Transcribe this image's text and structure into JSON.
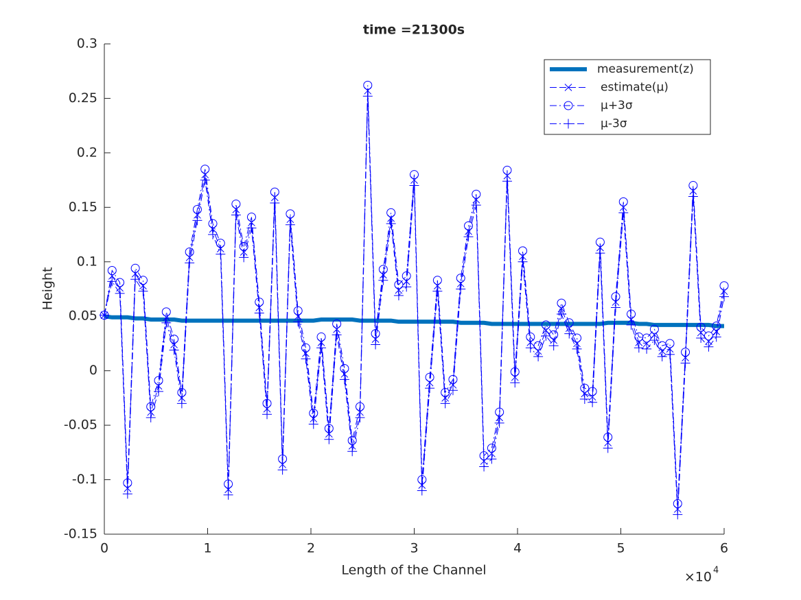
{
  "chart_data": {
    "type": "line",
    "title": "time =21300s",
    "xlabel": "Length of the Channel",
    "ylabel": "Height",
    "x_exponent": {
      "base": "×10",
      "power": "4"
    },
    "xlim": [
      0,
      60000
    ],
    "ylim": [
      -0.15,
      0.3
    ],
    "xticks": [
      {
        "value": 0,
        "label": "0"
      },
      {
        "value": 10000,
        "label": "1"
      },
      {
        "value": 20000,
        "label": "2"
      },
      {
        "value": 30000,
        "label": "3"
      },
      {
        "value": 40000,
        "label": "4"
      },
      {
        "value": 50000,
        "label": "5"
      },
      {
        "value": 60000,
        "label": "6"
      }
    ],
    "yticks": [
      -0.15,
      -0.1,
      -0.05,
      0,
      0.05,
      0.1,
      0.15,
      0.2,
      0.25,
      0.3
    ],
    "legend": "upper right",
    "x": [
      0,
      750,
      1500,
      2250,
      3000,
      3750,
      4500,
      5250,
      6000,
      6750,
      7500,
      8250,
      9000,
      9750,
      10500,
      11250,
      12000,
      12750,
      13500,
      14250,
      15000,
      15750,
      16500,
      17250,
      18000,
      18750,
      19500,
      20250,
      21000,
      21750,
      22500,
      23250,
      24000,
      24750,
      25500,
      26250,
      27000,
      27750,
      28500,
      29250,
      30000,
      30750,
      31500,
      32250,
      33000,
      33750,
      34500,
      35250,
      36000,
      36750,
      37500,
      38250,
      39000,
      39750,
      40500,
      41250,
      42000,
      42750,
      43500,
      44250,
      45000,
      45750,
      46500,
      47250,
      48000,
      48750,
      49500,
      50250,
      51000,
      51750,
      52500,
      53250,
      54000,
      54750,
      55500,
      56250,
      57000,
      57750,
      58500,
      59250,
      60000
    ],
    "series": [
      {
        "name": "measurement(z)",
        "color": "#0072bd",
        "line_width": 6,
        "dash": "none",
        "marker": "none",
        "values": [
          0.05,
          0.049,
          0.049,
          0.049,
          0.048,
          0.048,
          0.047,
          0.047,
          0.047,
          0.047,
          0.046,
          0.046,
          0.046,
          0.046,
          0.046,
          0.046,
          0.046,
          0.046,
          0.046,
          0.046,
          0.046,
          0.046,
          0.046,
          0.046,
          0.046,
          0.046,
          0.046,
          0.046,
          0.047,
          0.047,
          0.047,
          0.047,
          0.047,
          0.046,
          0.046,
          0.046,
          0.046,
          0.046,
          0.045,
          0.045,
          0.045,
          0.045,
          0.045,
          0.045,
          0.045,
          0.045,
          0.044,
          0.044,
          0.044,
          0.044,
          0.043,
          0.043,
          0.043,
          0.043,
          0.043,
          0.043,
          0.043,
          0.043,
          0.043,
          0.043,
          0.043,
          0.043,
          0.043,
          0.043,
          0.043,
          0.044,
          0.044,
          0.044,
          0.044,
          0.043,
          0.043,
          0.042,
          0.042,
          0.042,
          0.042,
          0.042,
          0.042,
          0.042,
          0.042,
          0.041,
          0.041
        ]
      },
      {
        "name": "estimate(μ)",
        "color": "#0000ff",
        "line_width": 1,
        "dash": "10 4",
        "marker": "x",
        "values": [
          0.051,
          0.087,
          0.076,
          -0.108,
          0.089,
          0.078,
          -0.038,
          -0.014,
          0.049,
          0.024,
          -0.025,
          0.104,
          0.143,
          0.18,
          0.13,
          0.112,
          -0.109,
          0.148,
          0.109,
          0.136,
          0.058,
          -0.035,
          0.159,
          -0.086,
          0.139,
          0.05,
          0.016,
          -0.044,
          0.026,
          -0.058,
          0.038,
          -0.003,
          -0.069,
          -0.038,
          0.257,
          0.029,
          0.088,
          0.14,
          0.074,
          0.082,
          0.175,
          -0.105,
          -0.011,
          0.078,
          -0.025,
          -0.013,
          0.08,
          0.128,
          0.157,
          -0.083,
          -0.076,
          -0.043,
          0.179,
          -0.006,
          0.105,
          0.026,
          0.018,
          0.037,
          0.028,
          0.057,
          0.039,
          0.025,
          -0.021,
          -0.024,
          0.113,
          -0.066,
          0.063,
          0.15,
          0.047,
          0.026,
          0.025,
          0.033,
          0.018,
          0.02,
          -0.127,
          0.012,
          0.165,
          0.035,
          0.027,
          0.036,
          0.073
        ]
      },
      {
        "name": "μ+3σ",
        "color": "#0000ff",
        "line_width": 1,
        "dash": "10 4 2 4",
        "marker": "o",
        "values": [
          0.051,
          0.092,
          0.081,
          -0.103,
          0.094,
          0.083,
          -0.033,
          -0.009,
          0.054,
          0.029,
          -0.02,
          0.109,
          0.148,
          0.185,
          0.135,
          0.117,
          -0.104,
          0.153,
          0.114,
          0.141,
          0.063,
          -0.03,
          0.164,
          -0.081,
          0.144,
          0.055,
          0.021,
          -0.039,
          0.031,
          -0.053,
          0.043,
          0.002,
          -0.064,
          -0.033,
          0.262,
          0.034,
          0.093,
          0.145,
          0.079,
          0.087,
          0.18,
          -0.1,
          -0.006,
          0.083,
          -0.02,
          -0.008,
          0.085,
          0.133,
          0.162,
          -0.078,
          -0.071,
          -0.038,
          0.184,
          -0.001,
          0.11,
          0.031,
          0.023,
          0.042,
          0.033,
          0.062,
          0.044,
          0.03,
          -0.016,
          -0.019,
          0.118,
          -0.061,
          0.068,
          0.155,
          0.052,
          0.031,
          0.03,
          0.038,
          0.023,
          0.025,
          -0.122,
          0.017,
          0.17,
          0.04,
          0.032,
          0.041,
          0.078
        ]
      },
      {
        "name": "μ-3σ",
        "color": "#0000ff",
        "line_width": 1,
        "dash": "10 4 2 4",
        "marker": "+",
        "values": [
          0.051,
          0.082,
          0.071,
          -0.113,
          0.084,
          0.073,
          -0.043,
          -0.019,
          0.044,
          0.019,
          -0.03,
          0.099,
          0.138,
          0.175,
          0.125,
          0.107,
          -0.114,
          0.143,
          0.104,
          0.131,
          0.053,
          -0.04,
          0.154,
          -0.091,
          0.134,
          0.045,
          0.011,
          -0.049,
          0.021,
          -0.063,
          0.033,
          -0.008,
          -0.074,
          -0.043,
          0.252,
          0.024,
          0.083,
          0.135,
          0.069,
          0.077,
          0.17,
          -0.11,
          -0.016,
          0.073,
          -0.03,
          -0.018,
          0.075,
          0.123,
          0.152,
          -0.088,
          -0.081,
          -0.048,
          0.174,
          -0.011,
          0.1,
          0.021,
          0.013,
          0.032,
          0.023,
          0.052,
          0.034,
          0.02,
          -0.026,
          -0.029,
          0.108,
          -0.071,
          0.058,
          0.145,
          0.042,
          0.021,
          0.02,
          0.028,
          0.013,
          0.015,
          -0.132,
          0.007,
          0.16,
          0.03,
          0.022,
          0.031,
          0.068
        ]
      }
    ]
  }
}
